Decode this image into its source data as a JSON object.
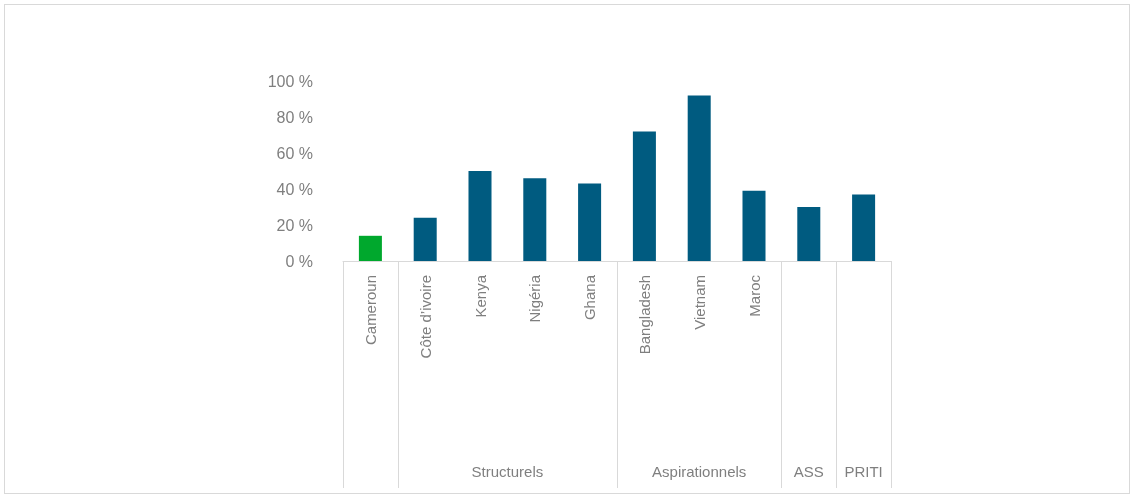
{
  "chart_data": {
    "type": "bar",
    "categories": [
      "Cameroun",
      "Côte d’ivoire",
      "Kenya",
      "Nigéria",
      "Ghana",
      "Bangladesh",
      "Vietnam",
      "Maroc",
      null,
      null
    ],
    "values": [
      14,
      24,
      50,
      46,
      43,
      72,
      92,
      39,
      30,
      37
    ],
    "colors": [
      "#00a82d",
      "#005b80",
      "#005b80",
      "#005b80",
      "#005b80",
      "#005b80",
      "#005b80",
      "#005b80",
      "#005b80",
      "#005b80"
    ],
    "ylim": [
      0,
      100
    ],
    "yticks": [
      {
        "value": 0,
        "label": "0 %"
      },
      {
        "value": 20,
        "label": "20 %"
      },
      {
        "value": 40,
        "label": "40 %"
      },
      {
        "value": 60,
        "label": "60 %"
      },
      {
        "value": 80,
        "label": "80 %"
      },
      {
        "value": 100,
        "label": "100 %"
      }
    ],
    "annotations": [
      "Structurels",
      "Aspirationnels",
      "ASS",
      "PRITI"
    ],
    "grid": false
  }
}
